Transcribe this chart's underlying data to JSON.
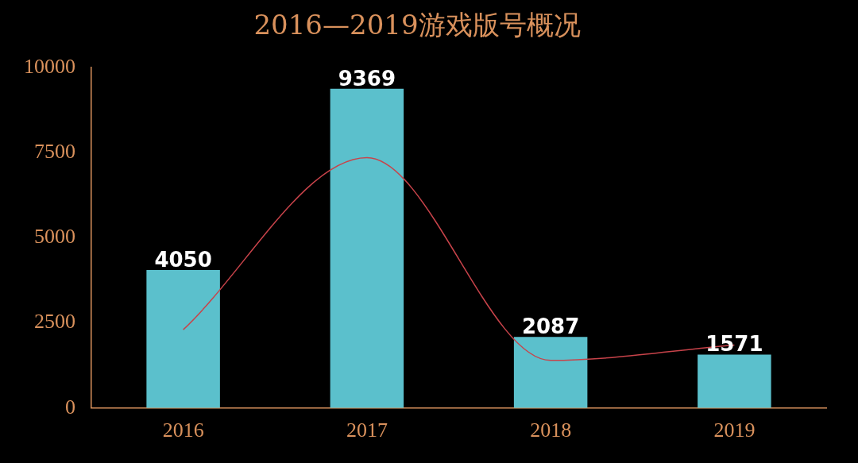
{
  "chart_data": {
    "type": "bar",
    "title": "2016—2019游戏版号概况",
    "categories": [
      "2016",
      "2017",
      "2018",
      "2019"
    ],
    "series": [
      {
        "color": "#5bc0cc",
        "values": [
          4050,
          9369,
          2087,
          1571
        ],
        "value_labels": [
          "4050",
          "9369",
          "2087",
          "1571"
        ]
      },
      {
        "type": "line",
        "color": "#c8434a",
        "values": [
          2300,
          7350,
          1400,
          1850
        ]
      }
    ],
    "ylim": [
      0,
      10000
    ],
    "yticks": [
      0,
      2500,
      5000,
      7500,
      10000
    ],
    "grid": false,
    "legend": false
  }
}
